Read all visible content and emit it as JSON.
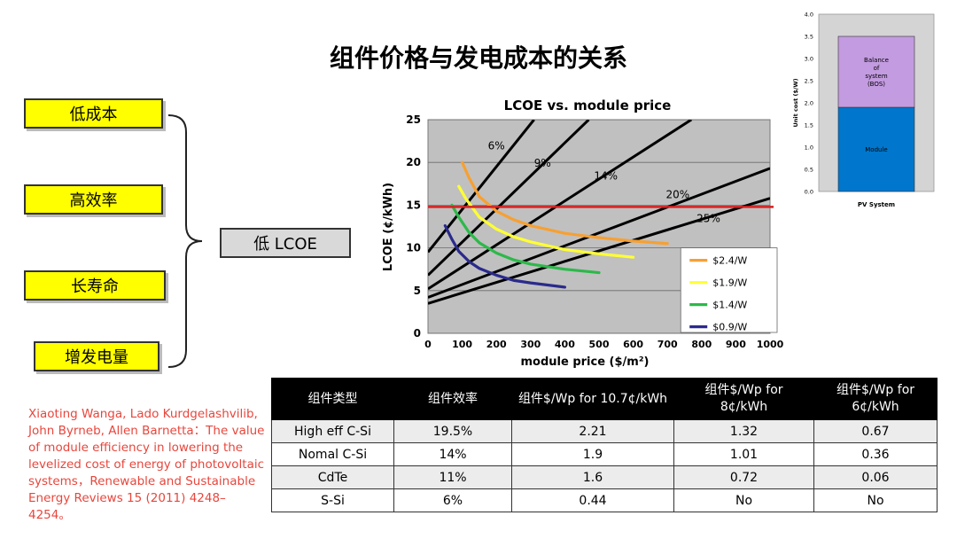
{
  "slide": {
    "title": "组件价格与发电成本的关系",
    "factors": [
      "低成本",
      "高效率",
      "长寿命",
      "增发电量"
    ],
    "result": "低 LCOE",
    "citation": "Xiaoting Wanga, Lado Kurdgelashvilib, John Byrneb, Allen Barnetta：The value of module efficiency in lowering the levelized cost of energy of photovoltaic systems，Renewable and Sustainable Energy Reviews 15 (2011) 4248– 4254。"
  },
  "table": {
    "headers": [
      "组件类型",
      "组件效率",
      "组件$/Wp for 10.7¢/kWh",
      "组件$/Wp for 8¢/kWh",
      "组件$/Wp for 6¢/kWh"
    ],
    "rows": [
      [
        "High eff C-Si",
        "19.5%",
        "2.21",
        "1.32",
        "0.67"
      ],
      [
        "Nomal C-Si",
        "14%",
        "1.9",
        "1.01",
        "0.36"
      ],
      [
        "CdTe",
        "11%",
        "1.6",
        "0.72",
        "0.06"
      ],
      [
        "S-Si",
        "6%",
        "0.44",
        "No",
        "No"
      ]
    ]
  },
  "chart_data": [
    {
      "type": "line",
      "title": "LCOE vs. module price",
      "xlabel": "module price ($/m²)",
      "ylabel": "LCOE (¢/kWh)",
      "xlim": [
        0,
        1000
      ],
      "ylim": [
        0,
        25
      ],
      "xticks": [
        "0",
        "100",
        "200",
        "300",
        "400",
        "500",
        "600",
        "700",
        "800",
        "900",
        "1000"
      ],
      "yticks": [
        "0",
        "5",
        "10",
        "15",
        "20",
        "25"
      ],
      "grid": true,
      "legend_position": "bottom-right",
      "colors": {
        "plot_bg": "#c0c0c0",
        "ref_line": "#d42020",
        "eff_line": "#000000"
      },
      "reference_line": {
        "y": 14.8
      },
      "efficiency_lines": [
        {
          "label": "6%",
          "points": [
            [
              0,
              9.5
            ],
            [
              310,
              25
            ]
          ],
          "label_at": [
            200,
            21.5
          ]
        },
        {
          "label": "9%",
          "points": [
            [
              0,
              6.8
            ],
            [
              470,
              25
            ]
          ],
          "label_at": [
            335,
            19.5
          ]
        },
        {
          "label": "14%",
          "points": [
            [
              0,
              5.2
            ],
            [
              770,
              25
            ]
          ],
          "label_at": [
            520,
            18.0
          ]
        },
        {
          "label": "20%",
          "points": [
            [
              0,
              4.2
            ],
            [
              1000,
              19.3
            ]
          ],
          "label_at": [
            730,
            15.8
          ]
        },
        {
          "label": "25%",
          "points": [
            [
              0,
              3.5
            ],
            [
              1000,
              15.8
            ]
          ],
          "label_at": [
            820,
            13.0
          ]
        }
      ],
      "series": [
        {
          "name": "$2.4/W",
          "color": "#f7a032",
          "x": [
            100,
            120,
            150,
            200,
            250,
            300,
            400,
            500,
            600,
            700
          ],
          "y": [
            20.0,
            18.2,
            16.0,
            14.3,
            13.3,
            12.6,
            11.7,
            11.2,
            10.8,
            10.5
          ]
        },
        {
          "name": "$1.9/W",
          "color": "#ffff33",
          "x": [
            90,
            110,
            150,
            200,
            250,
            300,
            400,
            500,
            600
          ],
          "y": [
            17.2,
            15.8,
            13.6,
            12.2,
            11.3,
            10.7,
            9.8,
            9.3,
            8.9
          ]
        },
        {
          "name": "$1.4/W",
          "color": "#2db84a",
          "x": [
            70,
            90,
            120,
            150,
            200,
            250,
            300,
            400,
            500
          ],
          "y": [
            15.0,
            13.6,
            11.8,
            10.6,
            9.4,
            8.6,
            8.1,
            7.5,
            7.1
          ]
        },
        {
          "name": "$0.9/W",
          "color": "#2a2a8c",
          "x": [
            50,
            70,
            90,
            120,
            150,
            200,
            250,
            300,
            400
          ],
          "y": [
            12.6,
            11.0,
            9.6,
            8.4,
            7.6,
            6.8,
            6.2,
            5.9,
            5.4
          ]
        }
      ]
    },
    {
      "type": "bar",
      "title": "",
      "xlabel": "",
      "ylabel": "Unit cost ($/W)",
      "categories": [
        "PV System"
      ],
      "ylim": [
        0,
        4.0
      ],
      "yticks": [
        "0.0",
        "0.5",
        "1.0",
        "1.5",
        "2.0",
        "2.5",
        "3.0",
        "3.5",
        "4.0"
      ],
      "stacked": true,
      "series": [
        {
          "label_lines": [
            "Module"
          ],
          "values": [
            1.9
          ],
          "color": "#0077cc"
        },
        {
          "label_lines": [
            "Balance",
            "of",
            "system",
            "(BOS)"
          ],
          "values": [
            1.6
          ],
          "color": "#c39be0"
        }
      ],
      "colors": {
        "plot_bg": "#d4d4d4"
      }
    }
  ]
}
